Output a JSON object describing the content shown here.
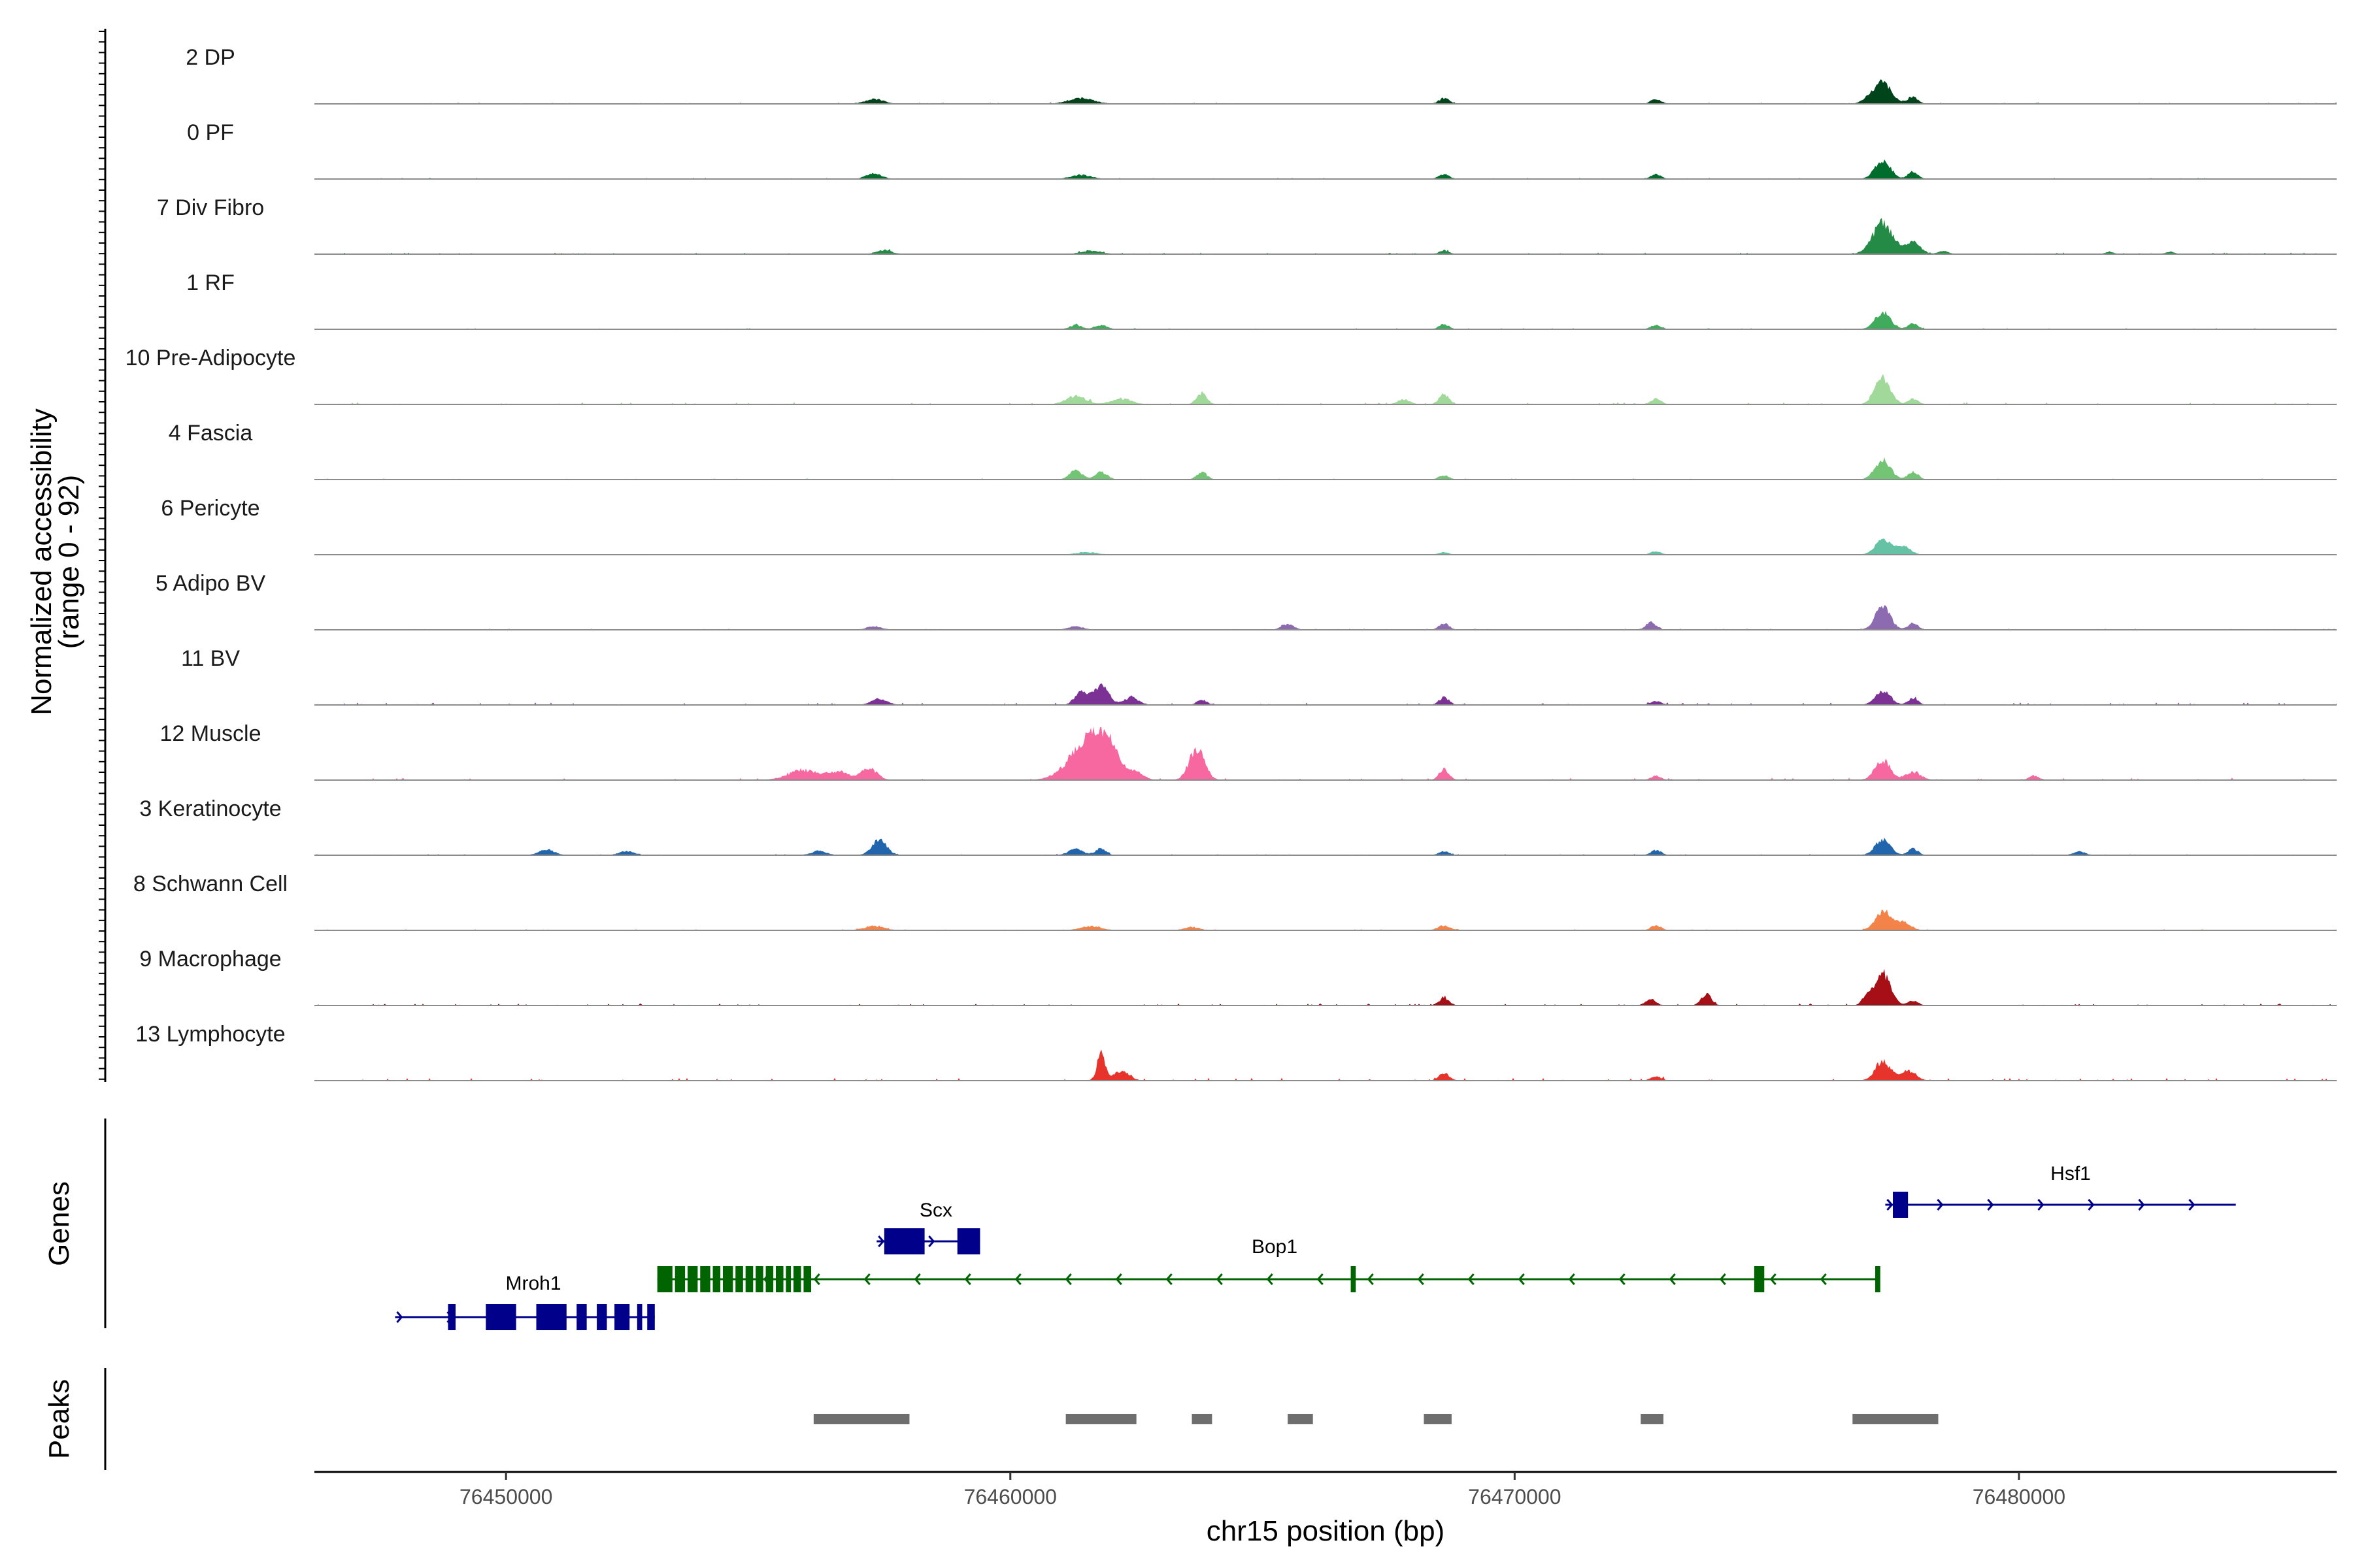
{
  "chart_data": {
    "type": "area",
    "title": "",
    "chromosome": "chr15",
    "xlabel": "chr15 position (bp)",
    "ylabel_line1": "Normalized accessibility",
    "ylabel_line2": "(range 0 - 92)",
    "y_range": [
      0,
      92
    ],
    "xlim": [
      76446200,
      76486300
    ],
    "x_ticks": [
      76450000,
      76460000,
      76470000,
      76480000
    ],
    "x_tick_labels": [
      "76450000",
      "76460000",
      "76470000",
      "76480000"
    ],
    "panel_labels": {
      "genes": "Genes",
      "peaks": "Peaks"
    },
    "tracks": [
      {
        "name": "2 DP",
        "color": "#00441b",
        "noise": 1.5,
        "peaks": [
          [
            76457300,
            6,
            180
          ],
          [
            76461400,
            7,
            250
          ],
          [
            76468600,
            7,
            100
          ],
          [
            76472800,
            6,
            100
          ],
          [
            76477300,
            28,
            170
          ],
          [
            76477000,
            5,
            120
          ],
          [
            76477900,
            8,
            100
          ]
        ]
      },
      {
        "name": "0 PF",
        "color": "#006d2c",
        "noise": 1.5,
        "peaks": [
          [
            76457300,
            7,
            150
          ],
          [
            76461400,
            5,
            200
          ],
          [
            76468600,
            6,
            100
          ],
          [
            76472800,
            6,
            100
          ],
          [
            76477300,
            24,
            150
          ],
          [
            76477900,
            9,
            100
          ]
        ]
      },
      {
        "name": "7 Div Fibro",
        "color": "#238b45",
        "noise": 2,
        "peaks": [
          [
            76457500,
            5,
            150
          ],
          [
            76461600,
            4,
            200
          ],
          [
            76468600,
            4,
            100
          ],
          [
            76477300,
            38,
            200
          ],
          [
            76477900,
            14,
            150
          ],
          [
            76478500,
            4,
            100
          ],
          [
            76481800,
            3,
            80
          ],
          [
            76483000,
            3,
            80
          ]
        ]
      },
      {
        "name": "1 RF",
        "color": "#41ab5d",
        "noise": 1.5,
        "peaks": [
          [
            76461300,
            5,
            120
          ],
          [
            76461800,
            5,
            120
          ],
          [
            76468600,
            6,
            100
          ],
          [
            76472800,
            5,
            100
          ],
          [
            76477300,
            22,
            150
          ],
          [
            76477900,
            7,
            100
          ]
        ]
      },
      {
        "name": "10 Pre-Adipocyte",
        "color": "#a1d99b",
        "noise": 3,
        "peaks": [
          [
            76461300,
            10,
            200
          ],
          [
            76462200,
            7,
            200
          ],
          [
            76463800,
            14,
            100
          ],
          [
            76467800,
            6,
            120
          ],
          [
            76468600,
            12,
            100
          ],
          [
            76472800,
            7,
            100
          ],
          [
            76477300,
            34,
            150
          ],
          [
            76477900,
            7,
            100
          ]
        ]
      },
      {
        "name": "4 Fascia",
        "color": "#74c476",
        "noise": 1.5,
        "peaks": [
          [
            76461300,
            11,
            120
          ],
          [
            76461800,
            9,
            120
          ],
          [
            76463800,
            9,
            100
          ],
          [
            76468600,
            5,
            100
          ],
          [
            76477300,
            25,
            150
          ],
          [
            76477900,
            10,
            100
          ]
        ]
      },
      {
        "name": "6 Pericyte",
        "color": "#66c2a5",
        "noise": 1,
        "peaks": [
          [
            76461500,
            3,
            200
          ],
          [
            76468600,
            3,
            100
          ],
          [
            76472800,
            4,
            100
          ],
          [
            76477300,
            18,
            150
          ],
          [
            76477700,
            10,
            150
          ]
        ]
      },
      {
        "name": "5 Adipo BV",
        "color": "#8c6bb1",
        "noise": 1.5,
        "peaks": [
          [
            76457300,
            4,
            150
          ],
          [
            76461300,
            4,
            150
          ],
          [
            76465500,
            7,
            120
          ],
          [
            76468600,
            8,
            100
          ],
          [
            76472700,
            9,
            100
          ],
          [
            76477300,
            28,
            150
          ],
          [
            76477900,
            8,
            100
          ]
        ]
      },
      {
        "name": "11 BV",
        "color": "#7b3294",
        "noise": 3,
        "peaks": [
          [
            76457400,
            8,
            150
          ],
          [
            76461400,
            17,
            120
          ],
          [
            76461800,
            23,
            150
          ],
          [
            76462400,
            9,
            150
          ],
          [
            76463800,
            6,
            100
          ],
          [
            76468600,
            9,
            100
          ],
          [
            76472800,
            5,
            100
          ],
          [
            76477300,
            17,
            150
          ],
          [
            76477900,
            8,
            100
          ]
        ]
      },
      {
        "name": "12 Muscle",
        "color": "#f768a1",
        "noise": 3,
        "peaks": [
          [
            76455900,
            12,
            300
          ],
          [
            76456600,
            10,
            200
          ],
          [
            76457200,
            15,
            150
          ],
          [
            76461500,
            42,
            350
          ],
          [
            76461900,
            35,
            250
          ],
          [
            76462500,
            8,
            150
          ],
          [
            76463700,
            40,
            150
          ],
          [
            76468600,
            13,
            100
          ],
          [
            76472800,
            5,
            100
          ],
          [
            76477300,
            25,
            150
          ],
          [
            76477900,
            10,
            150
          ],
          [
            76480300,
            5,
            100
          ]
        ]
      },
      {
        "name": "3 Keratinocyte",
        "color": "#2166ac",
        "noise": 1.5,
        "peaks": [
          [
            76450800,
            7,
            150
          ],
          [
            76452400,
            5,
            150
          ],
          [
            76456200,
            5,
            150
          ],
          [
            76457400,
            18,
            150
          ],
          [
            76461300,
            7,
            150
          ],
          [
            76461800,
            8,
            100
          ],
          [
            76468600,
            5,
            100
          ],
          [
            76472800,
            6,
            100
          ],
          [
            76477300,
            20,
            150
          ],
          [
            76477900,
            8,
            100
          ],
          [
            76481200,
            4,
            120
          ]
        ]
      },
      {
        "name": "8 Schwann Cell",
        "color": "#f4834a",
        "noise": 1.5,
        "peaks": [
          [
            76457300,
            5,
            200
          ],
          [
            76461600,
            5,
            200
          ],
          [
            76463600,
            4,
            150
          ],
          [
            76468600,
            6,
            120
          ],
          [
            76472800,
            6,
            100
          ],
          [
            76477300,
            24,
            150
          ],
          [
            76477700,
            10,
            150
          ]
        ]
      },
      {
        "name": "9 Macrophage",
        "color": "#a50f15",
        "noise": 2.5,
        "peaks": [
          [
            76468600,
            9,
            100
          ],
          [
            76472700,
            8,
            100
          ],
          [
            76473800,
            14,
            100
          ],
          [
            76477300,
            40,
            150
          ],
          [
            76477000,
            12,
            100
          ],
          [
            76477900,
            6,
            100
          ]
        ]
      },
      {
        "name": "13 Lymphocyte",
        "color": "#e6342d",
        "noise": 3.5,
        "peaks": [
          [
            76461800,
            33,
            80
          ],
          [
            76462200,
            12,
            150
          ],
          [
            76468600,
            9,
            100
          ],
          [
            76472800,
            5,
            100
          ],
          [
            76477300,
            24,
            150
          ],
          [
            76477800,
            12,
            150
          ]
        ]
      }
    ],
    "genes": [
      {
        "name": "Mroh1",
        "strand": "+",
        "color": "#00008b",
        "start": 76447800,
        "end": 76452950,
        "exons": [
          [
            76448850,
            76449000
          ],
          [
            76449600,
            76450200
          ],
          [
            76450600,
            76451200
          ],
          [
            76451400,
            76451600
          ],
          [
            76451800,
            76452000
          ],
          [
            76452150,
            76452450
          ],
          [
            76452600,
            76452700
          ],
          [
            76452800,
            76452950
          ]
        ]
      },
      {
        "name": "Bop1",
        "strand": "-",
        "color": "#006400",
        "start": 76453000,
        "end": 76477200,
        "exons": [
          [
            76453000,
            76453300
          ],
          [
            76453350,
            76453550
          ],
          [
            76453600,
            76453800
          ],
          [
            76453850,
            76454050
          ],
          [
            76454100,
            76454250
          ],
          [
            76454300,
            76454500
          ],
          [
            76454550,
            76454700
          ],
          [
            76454750,
            76454900
          ],
          [
            76454950,
            76455100
          ],
          [
            76455150,
            76455300
          ],
          [
            76455350,
            76455500
          ],
          [
            76455550,
            76455650
          ],
          [
            76455700,
            76455850
          ],
          [
            76455900,
            76456050
          ],
          [
            76466750,
            76466850
          ],
          [
            76474750,
            76474950
          ],
          [
            76477150,
            76477250
          ]
        ]
      },
      {
        "name": "Scx",
        "strand": "+",
        "color": "#00008b",
        "start": 76457350,
        "end": 76459400,
        "exons": [
          [
            76457500,
            76458300
          ],
          [
            76458950,
            76459400
          ]
        ]
      },
      {
        "name": "Hsf1",
        "strand": "+",
        "color": "#00008b",
        "start": 76477350,
        "end": 76484300,
        "exons": [
          [
            76477500,
            76477800
          ]
        ]
      }
    ],
    "peaks": [
      [
        76456100,
        76458000
      ],
      [
        76461100,
        76462500
      ],
      [
        76463600,
        76464000
      ],
      [
        76465500,
        76466000
      ],
      [
        76468200,
        76468750
      ],
      [
        76472500,
        76472950
      ],
      [
        76476700,
        76478400
      ]
    ]
  }
}
